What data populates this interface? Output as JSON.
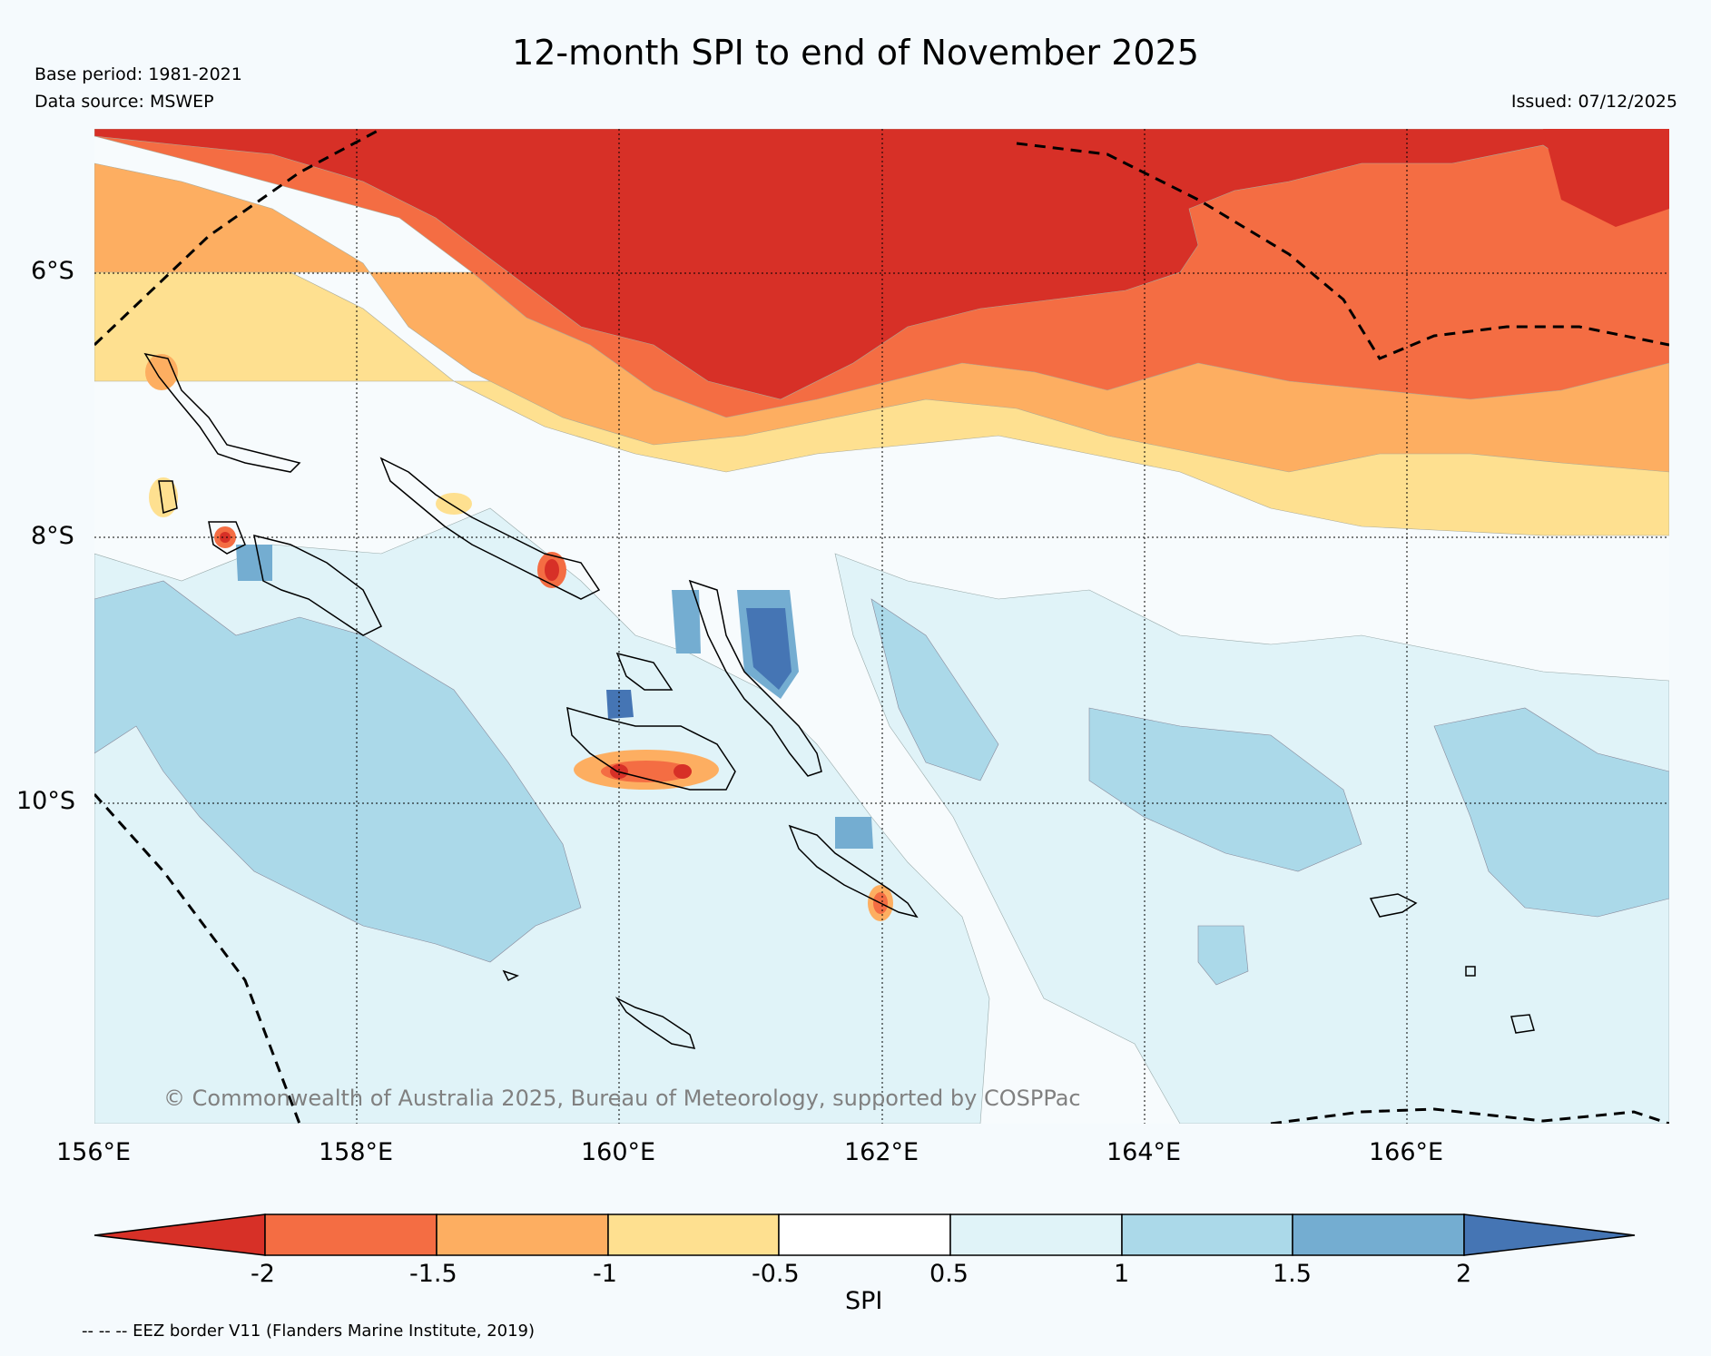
{
  "header": {
    "title": "12-month SPI to end of November 2025",
    "base_period": "Base period: 1981-2021",
    "data_source": "Data source: MSWEP",
    "issued": "Issued: 07/12/2025"
  },
  "map": {
    "lat_labels": [
      "6°S",
      "8°S",
      "10°S"
    ],
    "lon_labels": [
      "156°E",
      "158°E",
      "160°E",
      "162°E",
      "164°E",
      "166°E"
    ],
    "copyright": "© Commonwealth of Australia 2025, Bureau of Meteorology, supported by COSPPac"
  },
  "colorbar": {
    "label": "SPI",
    "ticks": [
      "-2",
      "-1.5",
      "-1",
      "-0.5",
      "0.5",
      "1",
      "1.5",
      "2"
    ],
    "colors": [
      "#d73027",
      "#f46d43",
      "#fdae61",
      "#fee090",
      "#ffffff",
      "#e0f3f8",
      "#abd9e9",
      "#74add1",
      "#4575b4"
    ]
  },
  "legend": {
    "eez_note": "-- -- -- EEZ border V11 (Flanders Marine Institute, 2019)"
  }
}
